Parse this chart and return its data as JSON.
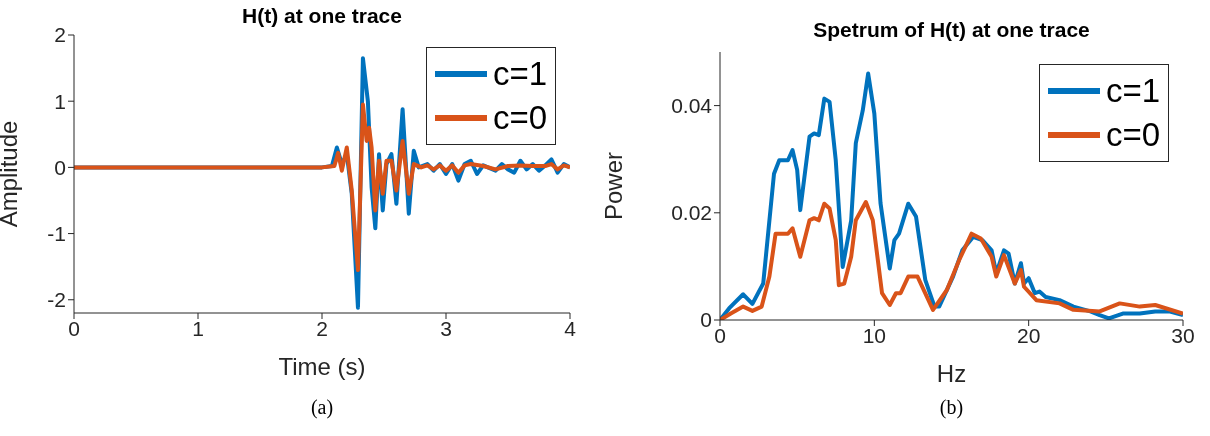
{
  "chart_data": [
    {
      "type": "line",
      "title": "H(t) at one trace",
      "xlabel": "Time (s)",
      "ylabel": "Amplitude",
      "xlim": [
        0,
        4
      ],
      "ylim": [
        -2.2,
        2
      ],
      "xticks": [
        0,
        1,
        2,
        3,
        4
      ],
      "yticks": [
        -2,
        -1,
        0,
        1,
        2
      ],
      "legend": "top right",
      "annotations": [
        "(a)"
      ],
      "series": [
        {
          "name": "c=1",
          "color": "#0072bd",
          "x": [
            0,
            2.0,
            2.08,
            2.12,
            2.16,
            2.2,
            2.24,
            2.29,
            2.33,
            2.37,
            2.4,
            2.43,
            2.46,
            2.49,
            2.52,
            2.56,
            2.6,
            2.65,
            2.7,
            2.74,
            2.78,
            2.85,
            2.9,
            2.95,
            3.0,
            3.05,
            3.1,
            3.15,
            3.2,
            3.25,
            3.3,
            3.4,
            3.45,
            3.5,
            3.55,
            3.6,
            3.65,
            3.7,
            3.75,
            3.8,
            3.85,
            3.9,
            3.95,
            4.0
          ],
          "values": [
            0,
            0,
            0.02,
            0.3,
            0.05,
            0.2,
            -0.4,
            -2.12,
            1.65,
            1.0,
            -0.3,
            -0.92,
            0.2,
            -0.65,
            0.05,
            0.2,
            -0.55,
            0.88,
            -0.7,
            0.25,
            0,
            0.05,
            -0.05,
            0.05,
            -0.1,
            0.05,
            -0.2,
            0.05,
            0.1,
            -0.1,
            0.03,
            -0.05,
            0.05,
            -0.03,
            -0.08,
            0.1,
            -0.03,
            0.05,
            -0.05,
            0.03,
            0.12,
            -0.08,
            0.05,
            0
          ]
        },
        {
          "name": "c=0",
          "color": "#d95319",
          "x": [
            0,
            2.0,
            2.1,
            2.13,
            2.16,
            2.2,
            2.24,
            2.29,
            2.33,
            2.36,
            2.38,
            2.4,
            2.43,
            2.46,
            2.49,
            2.52,
            2.56,
            2.6,
            2.65,
            2.7,
            2.74,
            2.8,
            2.85,
            2.9,
            2.95,
            3.0,
            3.05,
            3.1,
            3.15,
            3.2,
            3.3,
            3.4,
            3.5,
            3.6,
            3.7,
            3.8,
            3.85,
            3.9,
            3.95,
            4.0
          ],
          "values": [
            0,
            0,
            0.02,
            0.22,
            -0.05,
            0.3,
            -0.35,
            -1.55,
            0.95,
            0.4,
            0.6,
            0.3,
            -0.65,
            0.1,
            -0.4,
            0.1,
            0.1,
            -0.35,
            0.4,
            -0.4,
            0.05,
            0,
            0.03,
            -0.03,
            0.03,
            -0.05,
            0.03,
            -0.08,
            0.03,
            0.05,
            0.02,
            -0.03,
            0.02,
            0.03,
            0.02,
            0.02,
            0.05,
            -0.03,
            0.03,
            0
          ]
        }
      ]
    },
    {
      "type": "line",
      "title": "Spetrum of H(t) at one trace",
      "xlabel": "Hz",
      "ylabel": "Power",
      "xlim": [
        0,
        30
      ],
      "ylim": [
        0,
        0.05
      ],
      "xticks": [
        0,
        10,
        20,
        30
      ],
      "yticks": [
        0,
        0.02,
        0.04
      ],
      "legend": "top right",
      "annotations": [
        "(b)"
      ],
      "series": [
        {
          "name": "c=1",
          "color": "#0072bd",
          "x": [
            0,
            0.6,
            1.5,
            2.1,
            2.8,
            3.5,
            3.84,
            4.4,
            4.7,
            5.0,
            5.2,
            5.8,
            6.1,
            6.4,
            6.76,
            7.1,
            7.5,
            7.95,
            8.5,
            8.8,
            9.25,
            9.6,
            10,
            10.4,
            11,
            11.3,
            11.6,
            12.2,
            12.7,
            13.3,
            13.9,
            14.2,
            15.1,
            15.7,
            16.4,
            17,
            17.6,
            17.9,
            18.4,
            18.7,
            19.1,
            19.5,
            19.7,
            20,
            20.4,
            20.7,
            21.1,
            22,
            22.9,
            24,
            24.6,
            25.2,
            26.1,
            27.2,
            28.2,
            29.1,
            30
          ],
          "values": [
            0,
            0.0022,
            0.0048,
            0.003,
            0.0068,
            0.0273,
            0.0298,
            0.0298,
            0.0317,
            0.028,
            0.0205,
            0.0342,
            0.0348,
            0.0345,
            0.0413,
            0.0407,
            0.0298,
            0.0099,
            0.0186,
            0.033,
            0.0391,
            0.046,
            0.0385,
            0.0218,
            0.0096,
            0.0149,
            0.0161,
            0.0217,
            0.0193,
            0.0075,
            0.0025,
            0.0025,
            0.0081,
            0.013,
            0.0155,
            0.0149,
            0.013,
            0.0087,
            0.013,
            0.0124,
            0.0068,
            0.0106,
            0.0068,
            0.0078,
            0.005,
            0.0053,
            0.0043,
            0.0037,
            0.0025,
            0.0016,
            0.0009,
            0.0003,
            0.0012,
            0.0012,
            0.0016,
            0.0016,
            0.0009
          ]
        },
        {
          "name": "c=0",
          "color": "#d95319",
          "x": [
            0,
            0.7,
            1.5,
            2.1,
            2.7,
            3.2,
            3.6,
            4.4,
            4.7,
            5.2,
            5.8,
            6.1,
            6.4,
            6.76,
            7.1,
            7.5,
            7.7,
            8.05,
            8.5,
            8.8,
            9.45,
            9.9,
            10.5,
            11,
            11.4,
            11.7,
            12.2,
            12.8,
            13.8,
            14.7,
            15.5,
            16.3,
            16.9,
            17.6,
            17.9,
            18.4,
            19.1,
            19.5,
            19.7,
            20.5,
            22,
            22.9,
            24.6,
            25.9,
            27.2,
            28.2,
            30
          ],
          "values": [
            0,
            0.0012,
            0.0025,
            0.0017,
            0.0025,
            0.0081,
            0.0161,
            0.0161,
            0.0171,
            0.0118,
            0.0186,
            0.019,
            0.0186,
            0.0217,
            0.0208,
            0.0149,
            0.0065,
            0.0068,
            0.0118,
            0.0186,
            0.022,
            0.0186,
            0.005,
            0.0028,
            0.005,
            0.005,
            0.0081,
            0.0081,
            0.0019,
            0.0056,
            0.0112,
            0.0161,
            0.0152,
            0.0118,
            0.0081,
            0.0121,
            0.0068,
            0.0093,
            0.0062,
            0.0037,
            0.0031,
            0.0019,
            0.0016,
            0.0031,
            0.0025,
            0.0028,
            0.0012
          ]
        }
      ]
    }
  ]
}
